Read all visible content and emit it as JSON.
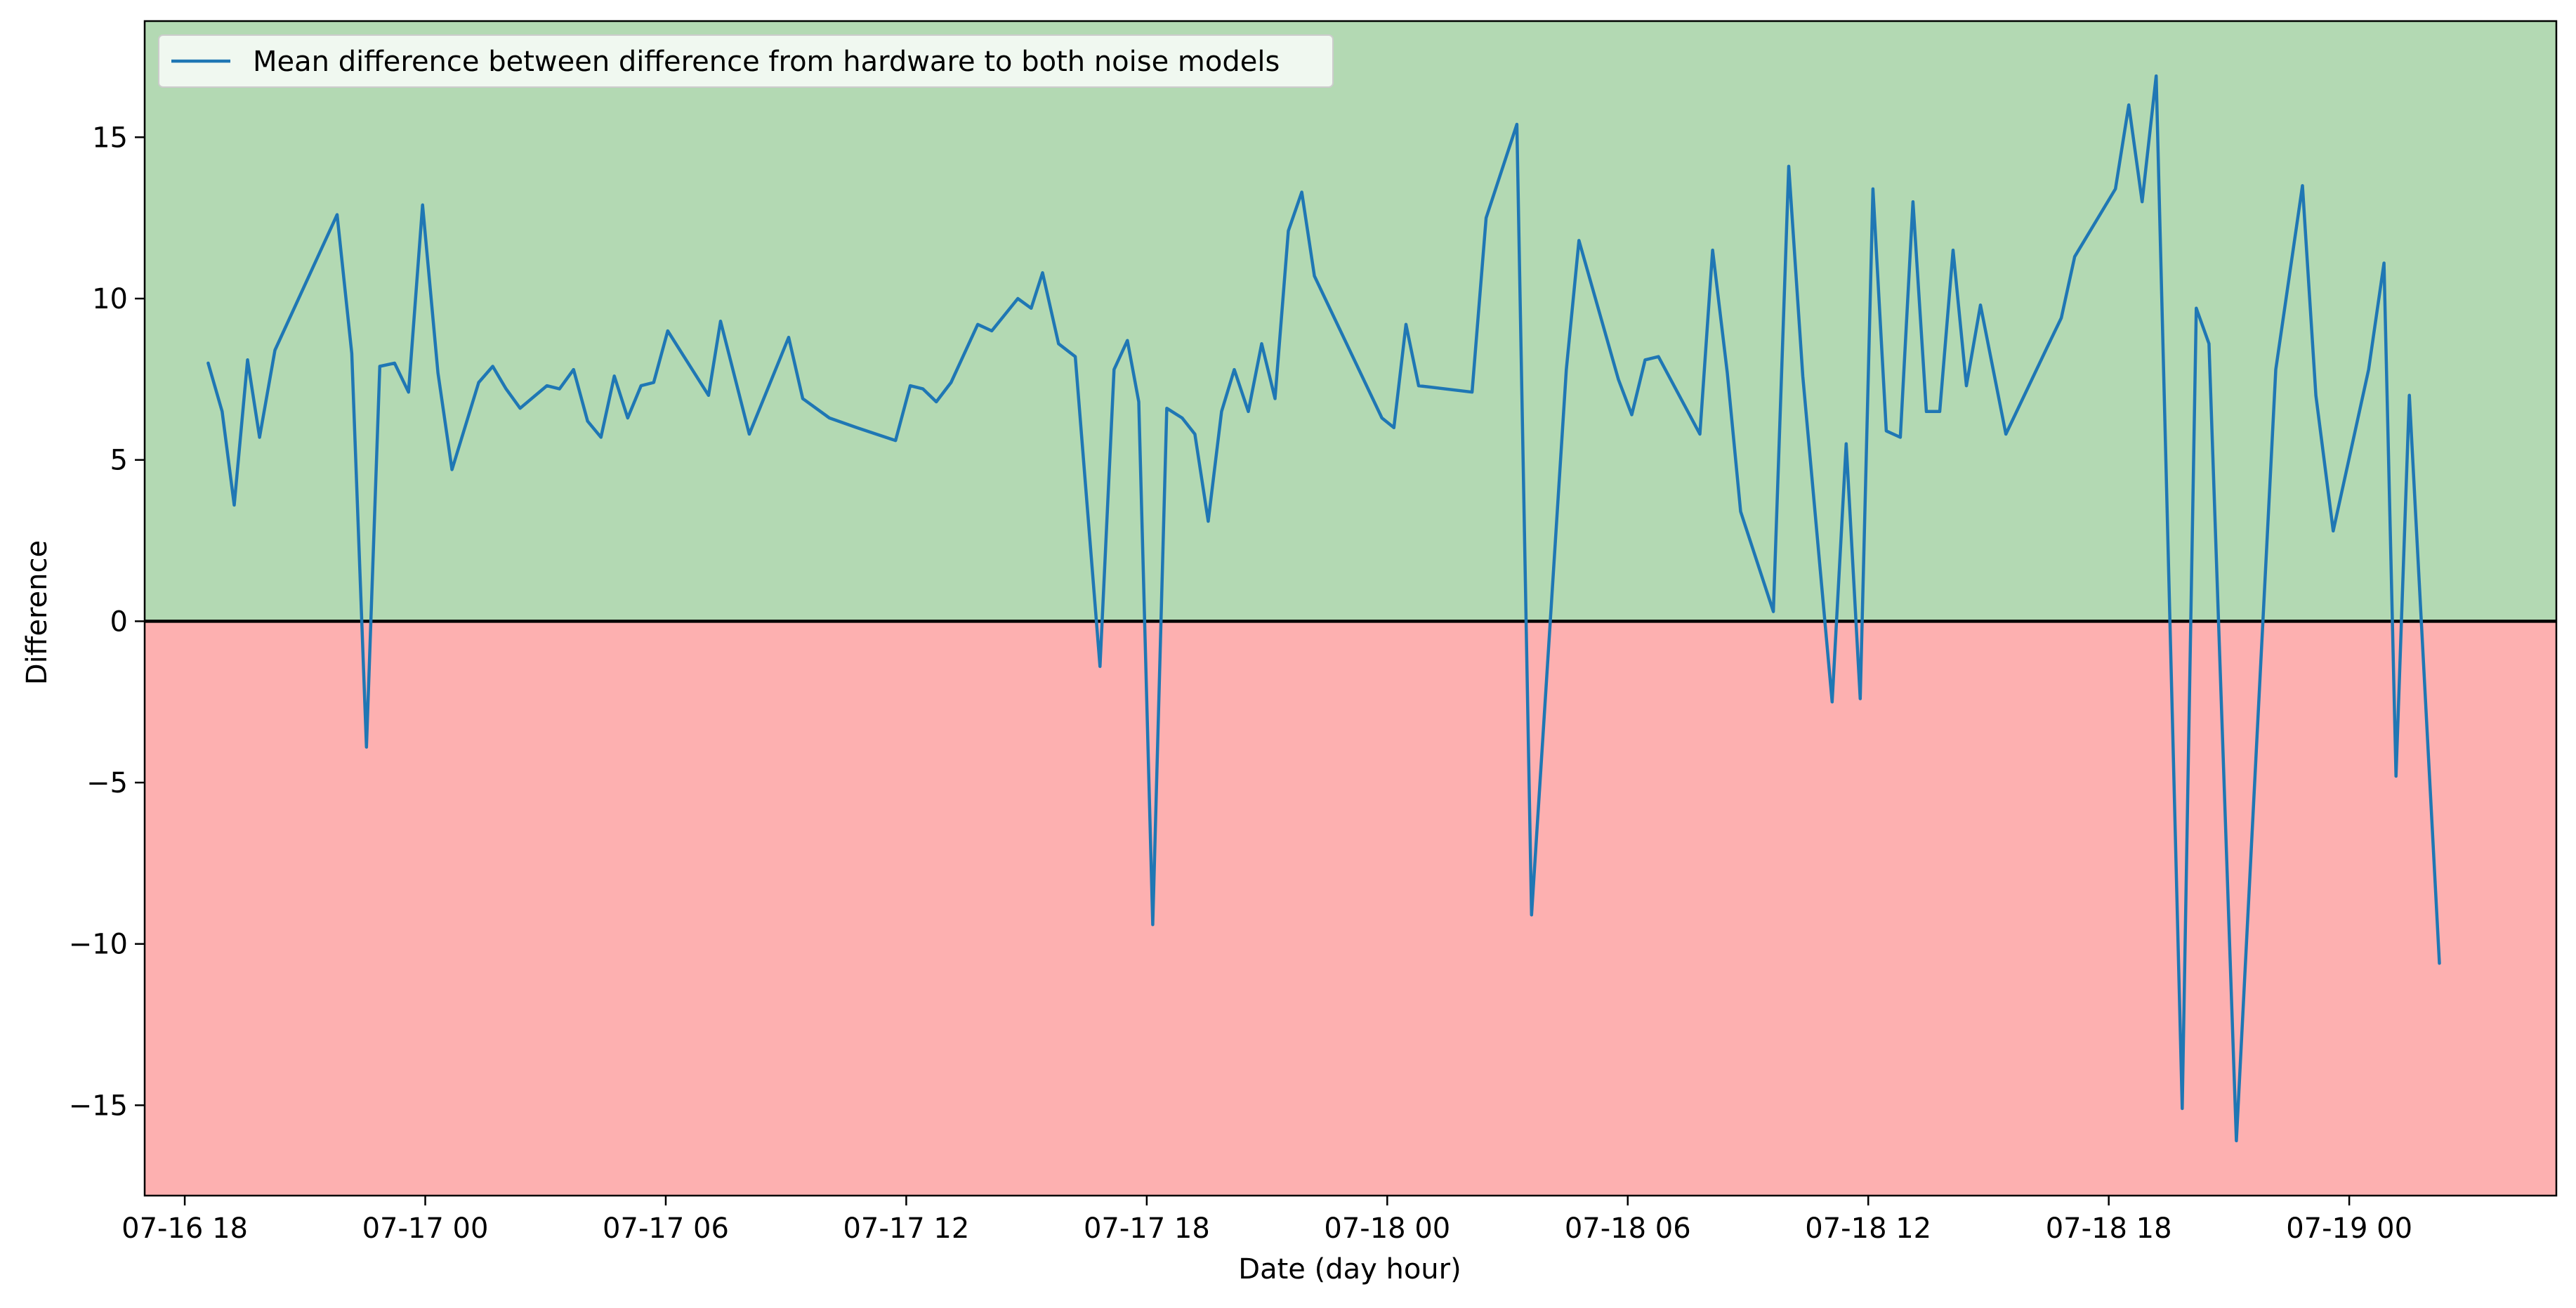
{
  "chart_data": {
    "type": "line",
    "title": "",
    "xlabel": "Date (day hour)",
    "ylabel": "Difference",
    "xlim": [
      "2024-07-16 17:00",
      "2024-07-19 05:10"
    ],
    "ylim": [
      -17.8,
      18.6
    ],
    "x_ticks": [
      {
        "value": "2024-07-16 18:00",
        "label": "07-16 18"
      },
      {
        "value": "2024-07-17 00:00",
        "label": "07-17 00"
      },
      {
        "value": "2024-07-17 06:00",
        "label": "07-17 06"
      },
      {
        "value": "2024-07-17 12:00",
        "label": "07-17 12"
      },
      {
        "value": "2024-07-17 18:00",
        "label": "07-17 18"
      },
      {
        "value": "2024-07-18 00:00",
        "label": "07-18 00"
      },
      {
        "value": "2024-07-18 06:00",
        "label": "07-18 06"
      },
      {
        "value": "2024-07-18 12:00",
        "label": "07-18 12"
      },
      {
        "value": "2024-07-18 18:00",
        "label": "07-18 18"
      },
      {
        "value": "2024-07-19 00:00",
        "label": "07-19 00"
      }
    ],
    "y_ticks": [
      {
        "value": 15,
        "label": "15"
      },
      {
        "value": 10,
        "label": "10"
      },
      {
        "value": 5,
        "label": "5"
      },
      {
        "value": 0,
        "label": "0"
      },
      {
        "value": -5,
        "label": "−5"
      },
      {
        "value": -10,
        "label": "−10"
      },
      {
        "value": -15,
        "label": "−15"
      }
    ],
    "regions": [
      {
        "from": 0,
        "to": 18.6,
        "color": "#b3d9b3"
      },
      {
        "from": -17.8,
        "to": 0,
        "color": "#fdb0b0"
      }
    ],
    "reference_line": {
      "y": 0,
      "color": "#000000"
    },
    "grid": false,
    "legend_position": "top-left",
    "series": [
      {
        "name": "Mean difference between difference from hardware to both noise models",
        "color": "#1f77b4",
        "x": [
          "2024-07-16 18:35",
          "2024-07-16 18:56",
          "2024-07-16 19:14",
          "2024-07-16 19:34",
          "2024-07-16 19:52",
          "2024-07-16 20:15",
          "2024-07-16 21:48",
          "2024-07-16 22:10",
          "2024-07-16 22:32",
          "2024-07-16 22:52",
          "2024-07-16 23:14",
          "2024-07-16 23:35",
          "2024-07-16 23:56",
          "2024-07-17 00:19",
          "2024-07-17 00:40",
          "2024-07-17 01:20",
          "2024-07-17 01:41",
          "2024-07-17 02:01",
          "2024-07-17 02:22",
          "2024-07-17 03:02",
          "2024-07-17 03:21",
          "2024-07-17 03:42",
          "2024-07-17 04:03",
          "2024-07-17 04:23",
          "2024-07-17 04:43",
          "2024-07-17 05:03",
          "2024-07-17 05:23",
          "2024-07-17 05:42",
          "2024-07-17 06:03",
          "2024-07-17 07:04",
          "2024-07-17 07:22",
          "2024-07-17 08:05",
          "2024-07-17 09:04",
          "2024-07-17 09:25",
          "2024-07-17 10:05",
          "2024-07-17 10:46",
          "2024-07-17 11:44",
          "2024-07-17 12:06",
          "2024-07-17 12:25",
          "2024-07-17 12:45",
          "2024-07-17 13:07",
          "2024-07-17 13:47",
          "2024-07-17 14:08",
          "2024-07-17 14:47",
          "2024-07-17 15:07",
          "2024-07-17 15:24",
          "2024-07-17 15:48",
          "2024-07-17 16:13",
          "2024-07-17 16:50",
          "2024-07-17 17:11",
          "2024-07-17 17:31",
          "2024-07-17 17:48",
          "2024-07-17 18:09",
          "2024-07-17 18:30",
          "2024-07-17 18:53",
          "2024-07-17 19:12",
          "2024-07-17 19:32",
          "2024-07-17 19:52",
          "2024-07-17 20:11",
          "2024-07-17 20:32",
          "2024-07-17 20:52",
          "2024-07-17 21:12",
          "2024-07-17 21:32",
          "2024-07-17 21:52",
          "2024-07-17 22:11",
          "2024-07-17 23:52",
          "2024-07-18 00:10",
          "2024-07-18 00:28",
          "2024-07-18 00:47",
          "2024-07-18 02:07",
          "2024-07-18 02:28",
          "2024-07-18 03:14",
          "2024-07-18 03:36",
          "2024-07-18 04:28",
          "2024-07-18 04:47",
          "2024-07-18 05:46",
          "2024-07-18 06:06",
          "2024-07-18 06:26",
          "2024-07-18 06:46",
          "2024-07-18 07:48",
          "2024-07-18 08:07",
          "2024-07-18 08:29",
          "2024-07-18 08:49",
          "2024-07-18 09:38",
          "2024-07-18 10:01",
          "2024-07-18 10:22",
          "2024-07-18 11:06",
          "2024-07-18 11:27",
          "2024-07-18 11:48",
          "2024-07-18 12:07",
          "2024-07-18 12:27",
          "2024-07-18 12:48",
          "2024-07-18 13:07",
          "2024-07-18 13:27",
          "2024-07-18 13:47",
          "2024-07-18 14:07",
          "2024-07-18 14:27",
          "2024-07-18 14:48",
          "2024-07-18 15:26",
          "2024-07-18 16:28",
          "2024-07-18 16:49",
          "2024-07-18 17:09",
          "2024-07-18 18:10",
          "2024-07-18 18:30",
          "2024-07-18 18:50",
          "2024-07-18 19:11",
          "2024-07-18 19:50",
          "2024-07-18 20:11",
          "2024-07-18 20:30",
          "2024-07-18 21:11",
          "2024-07-18 22:10",
          "2024-07-18 22:50",
          "2024-07-18 23:10",
          "2024-07-18 23:36",
          "2024-07-19 00:29",
          "2024-07-19 00:52",
          "2024-07-19 01:10",
          "2024-07-19 01:30",
          "2024-07-19 02:15"
        ],
        "values": [
          8.0,
          6.5,
          3.6,
          8.1,
          5.7,
          8.4,
          12.6,
          8.3,
          -3.9,
          7.9,
          8.0,
          7.1,
          12.9,
          7.7,
          4.7,
          7.4,
          7.9,
          7.2,
          6.6,
          7.3,
          7.2,
          7.8,
          6.2,
          5.7,
          7.6,
          6.3,
          7.3,
          7.4,
          9.0,
          7.0,
          9.3,
          5.8,
          8.8,
          6.9,
          6.3,
          6.0,
          5.6,
          7.3,
          7.2,
          6.8,
          7.4,
          9.2,
          9.0,
          10.0,
          9.7,
          10.8,
          8.6,
          8.2,
          -1.4,
          7.8,
          8.7,
          6.8,
          -9.4,
          6.6,
          6.3,
          5.8,
          3.1,
          6.5,
          7.8,
          6.5,
          8.6,
          6.9,
          12.1,
          13.3,
          10.7,
          6.3,
          6.0,
          9.2,
          7.3,
          7.1,
          12.5,
          15.4,
          -9.1,
          7.8,
          11.8,
          7.5,
          6.4,
          8.1,
          8.2,
          5.8,
          11.5,
          7.7,
          3.4,
          0.3,
          14.1,
          7.6,
          -2.5,
          5.5,
          -2.4,
          13.4,
          5.9,
          5.7,
          13.0,
          6.5,
          6.5,
          11.5,
          7.3,
          9.8,
          5.8,
          8.5,
          9.4,
          11.3,
          13.4,
          16.0,
          13.0,
          16.9,
          -15.1,
          9.7,
          8.6,
          -16.1,
          7.8,
          13.5,
          7.0,
          2.8,
          7.8,
          11.1,
          -4.8,
          7.0,
          -10.6
        ]
      }
    ]
  }
}
